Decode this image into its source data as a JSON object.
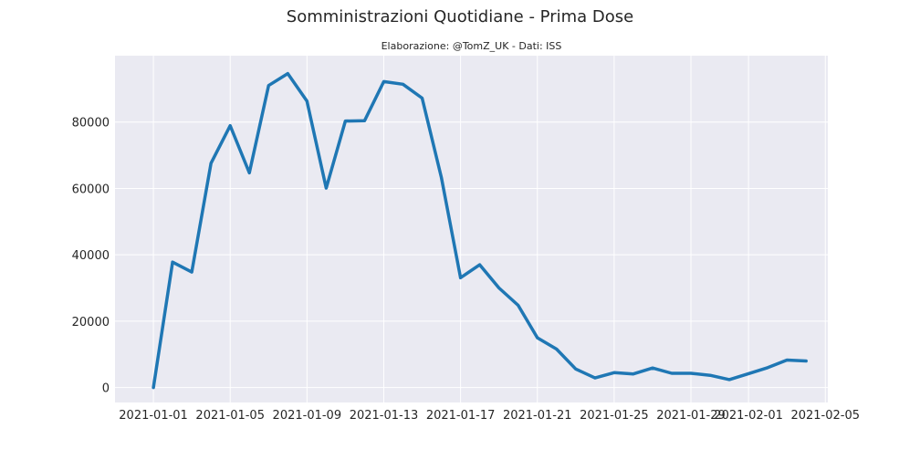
{
  "chart_data": {
    "type": "line",
    "title": "Somministrazioni Quotidiane - Prima Dose",
    "subtitle": "Elaborazione: @TomZ_UK - Dati: ISS",
    "xlabel": "",
    "ylabel": "",
    "x_ticks": [
      "2021-01-01",
      "2021-01-05",
      "2021-01-09",
      "2021-01-13",
      "2021-01-17",
      "2021-01-21",
      "2021-01-25",
      "2021-01-29",
      "2021-02-01",
      "2021-02-05"
    ],
    "y_ticks": [
      "0",
      "20000",
      "40000",
      "60000",
      "80000"
    ],
    "ylim": [
      -4500,
      100000
    ],
    "xlim": [
      "2020-12-30",
      "2021-02-05"
    ],
    "grid": true,
    "colors": {
      "line": "#1f77b4",
      "plot_bg": "#eaeaf2",
      "grid": "#ffffff"
    },
    "series": [
      {
        "x": [
          "2021-01-01",
          "2021-01-02",
          "2021-01-03",
          "2021-01-04",
          "2021-01-05",
          "2021-01-06",
          "2021-01-07",
          "2021-01-08",
          "2021-01-09",
          "2021-01-10",
          "2021-01-11",
          "2021-01-12",
          "2021-01-13",
          "2021-01-14",
          "2021-01-15",
          "2021-01-16",
          "2021-01-17",
          "2021-01-18",
          "2021-01-19",
          "2021-01-20",
          "2021-01-21",
          "2021-01-22",
          "2021-01-23",
          "2021-01-24",
          "2021-01-25",
          "2021-01-26",
          "2021-01-27",
          "2021-01-28",
          "2021-01-29",
          "2021-01-30",
          "2021-01-31",
          "2021-02-01",
          "2021-02-02",
          "2021-02-03",
          "2021-02-04"
        ],
        "values": [
          0,
          37800,
          34800,
          67600,
          78900,
          64700,
          91000,
          94600,
          86300,
          60100,
          80300,
          80400,
          92200,
          91400,
          87200,
          63300,
          33100,
          37000,
          30000,
          24800,
          15000,
          11600,
          5600,
          2900,
          4500,
          4100,
          5900,
          4300,
          4300,
          3700,
          2400,
          4200,
          6000,
          8300,
          8000
        ]
      }
    ]
  }
}
